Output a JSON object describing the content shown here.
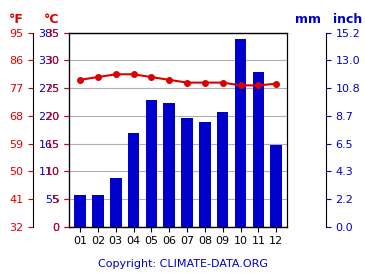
{
  "chart_data": {
    "type": "bar",
    "categories": [
      "01",
      "02",
      "03",
      "04",
      "05",
      "06",
      "07",
      "08",
      "09",
      "10",
      "11",
      "12"
    ],
    "series": [
      {
        "type": "bar",
        "color": "#0000cc",
        "axis": "y2",
        "values": [
          62,
          63,
          97,
          186,
          252,
          246,
          216,
          207,
          227,
          372,
          308,
          162
        ]
      },
      {
        "type": "line",
        "color": "#dd0000",
        "marker": "o",
        "axis": "y",
        "values": [
          26.5,
          27.0,
          27.5,
          27.5,
          27.0,
          26.5,
          26.0,
          26.0,
          26.0,
          25.5,
          25.5,
          25.8
        ]
      }
    ],
    "ylabel": "°C",
    "ylim": [
      0,
      35
    ],
    "yticks": [
      0,
      5,
      10,
      15,
      20,
      25,
      30,
      35
    ],
    "y2label": "mm",
    "y2lim": [
      0,
      385
    ],
    "y2ticks": [
      0,
      55,
      110,
      165,
      220,
      275,
      330,
      385
    ],
    "y_outer_label": "°F",
    "y_outer_ticks": [
      {
        "value": 0,
        "label": "32"
      },
      {
        "value": 5,
        "label": "41"
      },
      {
        "value": 10,
        "label": "50"
      },
      {
        "value": 15,
        "label": "59"
      },
      {
        "value": 20,
        "label": "68"
      },
      {
        "value": 25,
        "label": "77"
      },
      {
        "value": 30,
        "label": "86"
      },
      {
        "value": 35,
        "label": "95"
      }
    ],
    "y2_outer_label": "inch",
    "y2_outer_ticks": [
      {
        "value": 0,
        "label": "0.0"
      },
      {
        "value": 55,
        "label": "2.2"
      },
      {
        "value": 110,
        "label": "4.3"
      },
      {
        "value": 165,
        "label": "6.5"
      },
      {
        "value": 220,
        "label": "8.7"
      },
      {
        "value": 275,
        "label": "10.8"
      },
      {
        "value": 330,
        "label": "13.0"
      },
      {
        "value": 385,
        "label": "15.2"
      }
    ],
    "annotation": "Copyright: CLIMATE-DATA.ORG",
    "grid": true
  }
}
